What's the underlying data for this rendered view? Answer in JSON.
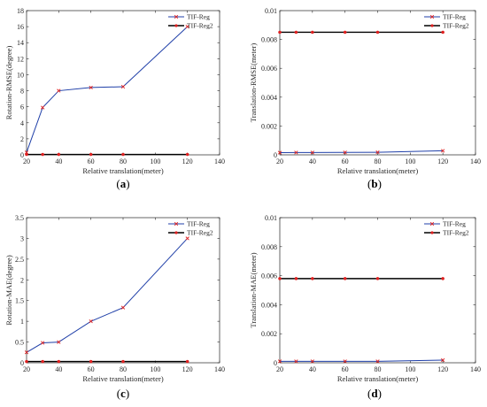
{
  "colors": {
    "series1": "#1f3fa8",
    "series2": "#000000",
    "marker": "#e02020",
    "axis": "#262626"
  },
  "chart_data": [
    {
      "type": "line",
      "caption": "(a)",
      "xlabel": "Relative translation(meter)",
      "ylabel": "Rotation-RMSE(degree)",
      "xlim": [
        20,
        140
      ],
      "ylim": [
        0,
        18
      ],
      "xticks": [
        "20",
        "40",
        "60",
        "80",
        "100",
        "120",
        "140"
      ],
      "yticks": [
        "0",
        "2",
        "4",
        "6",
        "8",
        "10",
        "12",
        "14",
        "16",
        "18"
      ],
      "legend_position": "top-right",
      "x": [
        20,
        30,
        40,
        60,
        80,
        120
      ],
      "series": [
        {
          "name": "TIF-Reg",
          "values": [
            0.3,
            5.9,
            8.0,
            8.4,
            8.5,
            16.0
          ]
        },
        {
          "name": "TIF-Reg2",
          "values": [
            0.05,
            0.05,
            0.05,
            0.05,
            0.05,
            0.05
          ]
        }
      ]
    },
    {
      "type": "line",
      "caption": "(b)",
      "xlabel": "Relative translation(meter)",
      "ylabel": "Translation-RMSE(meter)",
      "xlim": [
        20,
        140
      ],
      "ylim": [
        0,
        0.01
      ],
      "xticks": [
        "20",
        "40",
        "60",
        "80",
        "100",
        "120",
        "140"
      ],
      "yticks": [
        "0",
        "0.002",
        "0.004",
        "0.006",
        "0.008",
        "0.01"
      ],
      "legend_position": "top-right",
      "x": [
        20,
        30,
        40,
        60,
        80,
        120
      ],
      "series": [
        {
          "name": "TIF-Reg",
          "values": [
            0.00015,
            0.00016,
            0.00016,
            0.00017,
            0.00018,
            0.00028
          ]
        },
        {
          "name": "TIF-Reg2",
          "values": [
            0.0085,
            0.0085,
            0.0085,
            0.0085,
            0.0085,
            0.0085
          ]
        }
      ]
    },
    {
      "type": "line",
      "caption": "(c)",
      "xlabel": "Relative translation(meter)",
      "ylabel": "Rotation-MAE(degree)",
      "xlim": [
        20,
        140
      ],
      "ylim": [
        0,
        3.5
      ],
      "xticks": [
        "20",
        "40",
        "60",
        "80",
        "100",
        "120",
        "140"
      ],
      "yticks": [
        "0",
        "0.5",
        "1",
        "1.5",
        "2",
        "2.5",
        "3",
        "3.5"
      ],
      "legend_position": "top-right",
      "x": [
        20,
        30,
        40,
        60,
        80,
        120
      ],
      "series": [
        {
          "name": "TIF-Reg",
          "values": [
            0.25,
            0.48,
            0.5,
            1.0,
            1.33,
            3.0
          ]
        },
        {
          "name": "TIF-Reg2",
          "values": [
            0.03,
            0.03,
            0.03,
            0.03,
            0.03,
            0.03
          ]
        }
      ]
    },
    {
      "type": "line",
      "caption": "(d)",
      "xlabel": "Relative translation(meter)",
      "ylabel": "Translation-MAE(meter)",
      "xlim": [
        20,
        140
      ],
      "ylim": [
        0,
        0.01
      ],
      "xticks": [
        "20",
        "40",
        "60",
        "80",
        "100",
        "120",
        "140"
      ],
      "yticks": [
        "0",
        "0.002",
        "0.004",
        "0.006",
        "0.008",
        "0.01"
      ],
      "legend_position": "top-right",
      "x": [
        20,
        30,
        40,
        60,
        80,
        120
      ],
      "series": [
        {
          "name": "TIF-Reg",
          "values": [
            0.0001,
            0.0001,
            0.0001,
            0.0001,
            0.0001,
            0.00018
          ]
        },
        {
          "name": "TIF-Reg2",
          "values": [
            0.0058,
            0.0058,
            0.0058,
            0.0058,
            0.0058,
            0.0058
          ]
        }
      ]
    }
  ]
}
